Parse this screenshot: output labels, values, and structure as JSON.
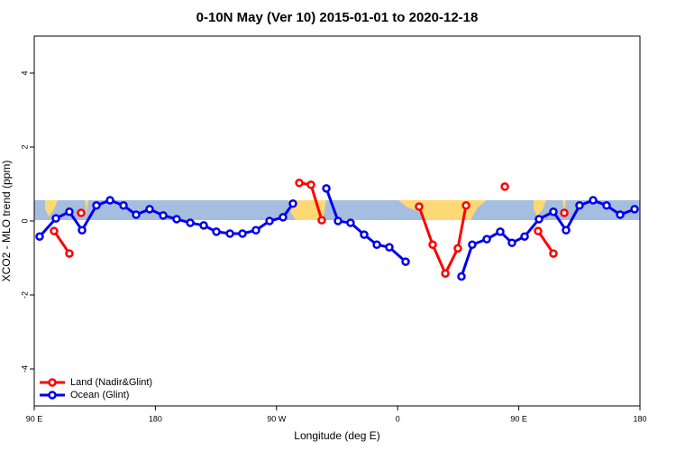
{
  "chart_data": {
    "type": "line",
    "title": "0-10N May (Ver 10)   2015-01-01 to 2020-12-18",
    "x_label": "Longitude (deg E)",
    "y_label": "XCO2 - MLO trend (ppm)",
    "xlim": [
      90,
      540
    ],
    "xticks": [
      {
        "value": 90,
        "label": "90 E"
      },
      {
        "value": 180,
        "label": "180"
      },
      {
        "value": 270,
        "label": "90 W"
      },
      {
        "value": 360,
        "label": "0"
      },
      {
        "value": 450,
        "label": "90 E"
      },
      {
        "value": 540,
        "label": "180"
      }
    ],
    "ylim": [
      -5,
      5
    ],
    "yticks": [
      -4,
      -2,
      0,
      2,
      4
    ],
    "legend": "bottom-left",
    "series": [
      {
        "name": "Land (Nadir&Glint)",
        "color": "#ff0000",
        "x": [
          104.7,
          116.1,
          null,
          124.8,
          null,
          286.9,
          295.6,
          303.6,
          null,
          375.9,
          386.0,
          395.4,
          404.7,
          410.8,
          null,
          439.6,
          null,
          464.3,
          475.7,
          null,
          483.8
        ],
        "values": [
          -0.27,
          -0.88,
          null,
          0.22,
          null,
          1.03,
          0.98,
          0.02,
          null,
          0.39,
          -0.64,
          -1.42,
          -0.74,
          0.42,
          null,
          0.93,
          null,
          -0.27,
          -0.88,
          null,
          0.22
        ]
      },
      {
        "name": "Ocean (Glint)",
        "color": "#0000ee",
        "x": [
          94.0,
          106.1,
          116.1,
          125.5,
          136.2,
          146.3,
          156.3,
          165.7,
          175.7,
          185.8,
          195.8,
          205.9,
          215.9,
          225.3,
          235.4,
          244.7,
          254.7,
          264.8,
          274.8,
          282.2,
          null,
          307.0,
          315.7,
          325.0,
          335.1,
          344.5,
          353.8,
          365.9,
          null,
          407.4,
          415.4,
          426.2,
          436.2,
          444.9,
          454.3,
          465.0,
          475.7,
          485.1,
          495.1,
          505.2,
          515.2,
          525.3,
          536.0
        ],
        "values": [
          -0.42,
          0.07,
          0.25,
          -0.25,
          0.42,
          0.56,
          0.42,
          0.17,
          0.32,
          0.15,
          0.05,
          -0.05,
          -0.12,
          -0.29,
          -0.34,
          -0.34,
          -0.25,
          0.0,
          0.1,
          0.47,
          null,
          0.88,
          0.0,
          -0.05,
          -0.37,
          -0.64,
          -0.71,
          -1.1,
          null,
          -1.5,
          -0.64,
          -0.49,
          -0.29,
          -0.59,
          -0.42,
          0.05,
          0.25,
          -0.25,
          0.42,
          0.56,
          0.42,
          0.17,
          0.32
        ]
      }
    ]
  }
}
